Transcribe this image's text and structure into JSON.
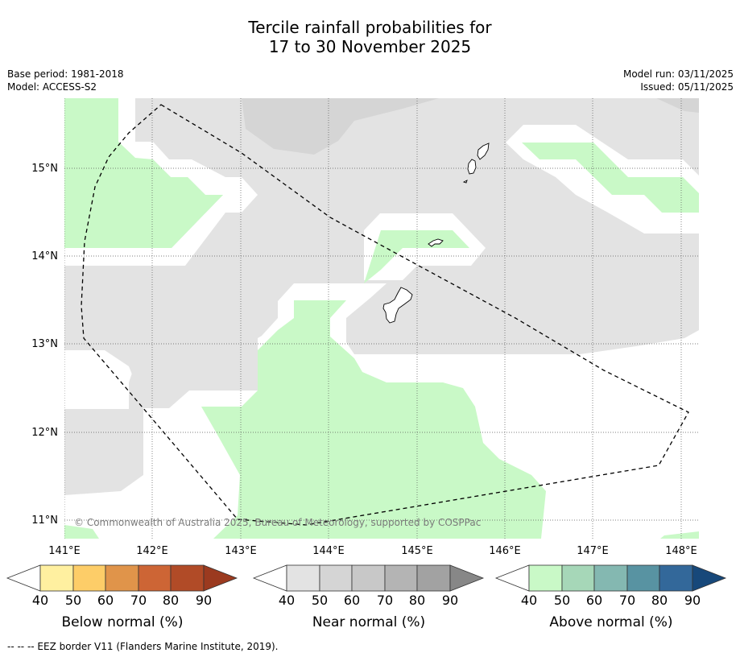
{
  "header": {
    "title_line1": "Tercile rainfall probabilities for",
    "title_line2": "17 to 30 November 2025",
    "base_period": "Base period: 1981-2018",
    "model": "Model: ACCESS-S2",
    "model_run": "Model run: 03/11/2025",
    "issued": "Issued: 05/11/2025"
  },
  "map": {
    "lat_labels": [
      "15°N",
      "14°N",
      "13°N",
      "12°N",
      "11°N"
    ],
    "lon_labels": [
      "141°E",
      "142°E",
      "143°E",
      "144°E",
      "145°E",
      "146°E",
      "147°E",
      "148°E"
    ],
    "copyright": "© Commonwealth of Australia 2025, Bureau of Meteorology, supported by COSPPac",
    "colors": {
      "near_normal_light": "#e3e3e3",
      "near_normal_mid": "#d5d5d5",
      "above_normal_light": "#c9f9c7",
      "coast": "#000000",
      "eez": "#000000"
    }
  },
  "colorbars": [
    {
      "title": "Below normal (%)",
      "ticks": [
        "40",
        "50",
        "60",
        "70",
        "80",
        "90"
      ],
      "low_color": "#ffffff",
      "colors": [
        "#fff0a0",
        "#fdcd68",
        "#e0944a",
        "#cd6535",
        "#b14b27"
      ],
      "high_color": "#9b3a1f"
    },
    {
      "title": "Near normal (%)",
      "ticks": [
        "40",
        "50",
        "60",
        "70",
        "80",
        "90"
      ],
      "low_color": "#ffffff",
      "colors": [
        "#e3e3e3",
        "#d5d5d5",
        "#c8c8c8",
        "#b4b4b4",
        "#a2a2a2"
      ],
      "high_color": "#878787"
    },
    {
      "title": "Above normal (%)",
      "ticks": [
        "40",
        "50",
        "60",
        "70",
        "80",
        "90"
      ],
      "low_color": "#ffffff",
      "colors": [
        "#c9f9c7",
        "#a6d7b8",
        "#84b8b1",
        "#5893a2",
        "#33689a"
      ],
      "high_color": "#17487a"
    }
  ],
  "footnote": "--  --  -- EEZ border V11 (Flanders Marine Institute, 2019)."
}
